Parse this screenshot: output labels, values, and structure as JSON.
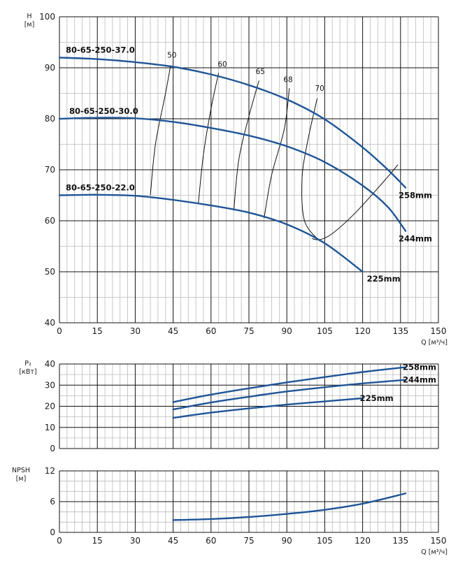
{
  "colors": {
    "curve": "#1f5597",
    "iso": "#111111",
    "grid_major": "#111111",
    "grid_minor": "#bbbbbb"
  },
  "chart_data": [
    {
      "type": "line",
      "xlabel": "Q [м³/ч]",
      "ylabel_symbol": "H",
      "ylabel_unit": "[м]",
      "xlim": [
        0,
        150
      ],
      "ylim": [
        40,
        100
      ],
      "x_ticks": [
        0,
        15,
        30,
        45,
        60,
        75,
        90,
        105,
        120,
        135,
        150
      ],
      "y_ticks": [
        40,
        50,
        60,
        70,
        80,
        90,
        100
      ],
      "grid": true,
      "series": [
        {
          "name": "80-65-250-37.0",
          "end_label": "258mm",
          "x": [
            0,
            15,
            30,
            45,
            60,
            75,
            90,
            105,
            120,
            130,
            137
          ],
          "y": [
            92,
            91.7,
            91.1,
            90.2,
            88.7,
            86.6,
            83.8,
            79.9,
            74.4,
            70,
            66.5
          ]
        },
        {
          "name": "80-65-250-30.0",
          "end_label": "244mm",
          "x": [
            0,
            15,
            30,
            45,
            60,
            75,
            90,
            105,
            120,
            130,
            137
          ],
          "y": [
            80,
            80.2,
            80.1,
            79.4,
            78.2,
            76.7,
            74.6,
            71.5,
            66.9,
            62.7,
            58
          ]
        },
        {
          "name": "80-65-250-22.0",
          "end_label": "225mm",
          "x": [
            0,
            15,
            30,
            45,
            60,
            75,
            90,
            105,
            120
          ],
          "y": [
            65,
            65.1,
            64.9,
            64.1,
            63,
            61.6,
            59.3,
            55.6,
            50
          ]
        }
      ],
      "efficiency_curves": [
        {
          "label": "50",
          "x": [
            36,
            38,
            42,
            44
          ],
          "y": [
            65,
            75,
            85,
            90.5
          ]
        },
        {
          "label": "60",
          "x": [
            55,
            57,
            60,
            63
          ],
          "y": [
            63.5,
            73,
            82,
            89
          ]
        },
        {
          "label": "65",
          "x": [
            69,
            71,
            75,
            79
          ],
          "y": [
            62,
            72,
            80.5,
            87.5
          ]
        },
        {
          "label": "68",
          "x": [
            81,
            84,
            89,
            91
          ],
          "y": [
            60.5,
            69,
            78,
            86
          ]
        },
        {
          "label": "70",
          "x": [
            103,
            97,
            96,
            98,
            102
          ],
          "y": [
            56,
            60,
            68,
            75,
            84
          ]
        },
        {
          "label": "",
          "x": [
            100,
            103,
            108,
            117,
            128,
            134
          ],
          "y": [
            56.5,
            56.3,
            57.5,
            61.5,
            67.5,
            71
          ]
        }
      ],
      "efficiency_label_points": [
        {
          "label": "50",
          "x": 44.5,
          "y": 92
        },
        {
          "label": "60",
          "x": 64.5,
          "y": 90.2
        },
        {
          "label": "65",
          "x": 79.5,
          "y": 88.8
        },
        {
          "label": "68",
          "x": 90.5,
          "y": 87.2
        },
        {
          "label": "70",
          "x": 103,
          "y": 85.5
        }
      ]
    },
    {
      "type": "line",
      "xlabel": "",
      "ylabel_symbol": "P₂",
      "ylabel_unit": "[кВт]",
      "xlim": [
        0,
        150
      ],
      "ylim": [
        0,
        40
      ],
      "x_ticks": [
        0,
        15,
        30,
        45,
        60,
        75,
        90,
        105,
        120,
        135,
        150
      ],
      "y_ticks": [
        0,
        10,
        20,
        30,
        40
      ],
      "grid": true,
      "series": [
        {
          "name": "",
          "end_label": "258mm",
          "x": [
            45,
            60,
            75,
            90,
            105,
            120,
            137
          ],
          "y": [
            22,
            25.5,
            28.5,
            31.3,
            33.8,
            36.2,
            38.5
          ]
        },
        {
          "name": "",
          "end_label": "244mm",
          "x": [
            45,
            60,
            75,
            90,
            105,
            120,
            137
          ],
          "y": [
            18.5,
            21.8,
            24.5,
            27,
            29,
            30.8,
            32.5
          ]
        },
        {
          "name": "",
          "end_label": "225mm",
          "x": [
            45,
            60,
            75,
            90,
            105,
            120
          ],
          "y": [
            14.5,
            17,
            19,
            20.8,
            22.3,
            23.8
          ]
        }
      ]
    },
    {
      "type": "line",
      "xlabel": "Q [м³/ч]",
      "ylabel_symbol": "NPSH",
      "ylabel_unit": "[м]",
      "xlim": [
        0,
        150
      ],
      "ylim": [
        0,
        12
      ],
      "x_ticks": [
        0,
        15,
        30,
        45,
        60,
        75,
        90,
        105,
        120,
        135,
        150
      ],
      "y_ticks": [
        0,
        6,
        12
      ],
      "grid": true,
      "series": [
        {
          "name": "",
          "end_label": "",
          "x": [
            45,
            60,
            75,
            90,
            105,
            120,
            137
          ],
          "y": [
            2.4,
            2.6,
            3.0,
            3.6,
            4.4,
            5.6,
            7.6
          ]
        }
      ]
    }
  ]
}
